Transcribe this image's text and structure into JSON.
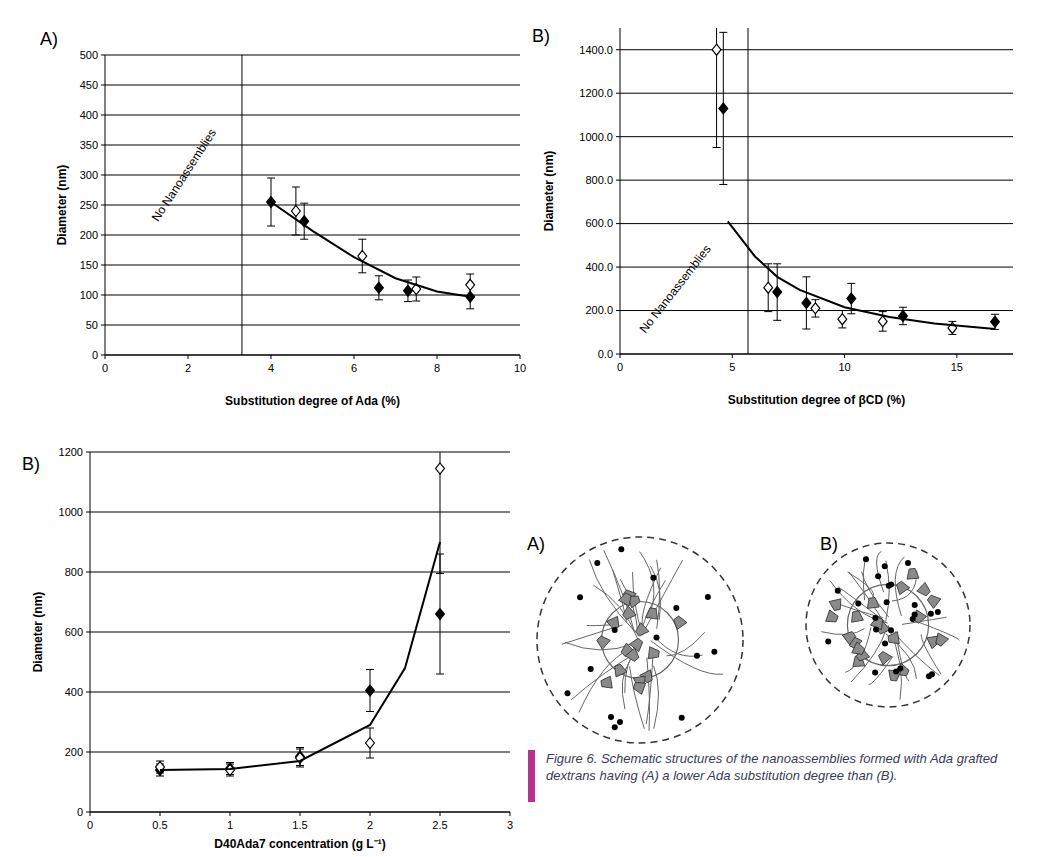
{
  "chart_data": [
    {
      "type": "scatter",
      "panel": "A)",
      "xlabel": "Substitution degree of Ada (%)",
      "ylabel": "Diameter (nm)",
      "xlim": [
        0,
        10
      ],
      "xticks": [
        0,
        2,
        4,
        6,
        8,
        10
      ],
      "ylim": [
        0,
        500
      ],
      "yticks": [
        0,
        50,
        100,
        150,
        200,
        250,
        300,
        350,
        400,
        450,
        500
      ],
      "grid": true,
      "vline": 3.3,
      "annotation": "No Nanoassemblies",
      "series": [
        {
          "marker": "diamond",
          "color": "#000000",
          "x": [
            4.0,
            4.8,
            6.6,
            7.3,
            8.8
          ],
          "values": [
            255,
            223,
            112,
            107,
            97
          ],
          "errors": [
            40,
            30,
            20,
            18,
            20
          ]
        },
        {
          "marker": "diamond-open",
          "color": "#000000",
          "x": [
            4.6,
            6.2,
            7.5,
            8.8
          ],
          "values": [
            240,
            165,
            110,
            117
          ],
          "errors": [
            40,
            28,
            20,
            18
          ]
        },
        {
          "type": "line",
          "color": "#000000",
          "x": [
            4,
            5,
            6,
            7,
            8,
            8.8
          ],
          "values": [
            255,
            207,
            163,
            128,
            106,
            97
          ]
        }
      ]
    },
    {
      "type": "scatter",
      "panel": "B)",
      "xlabel": "Substitution degree of βCD (%)",
      "ylabel": "Diameter (nm)",
      "xlim": [
        0,
        17.5
      ],
      "xticks": [
        0,
        5,
        10,
        15
      ],
      "ylim": [
        0,
        1500
      ],
      "yticks": [
        {
          "value": 0,
          "label": "0.0"
        },
        {
          "value": 200,
          "label": "200.0"
        },
        {
          "value": 400,
          "label": "400.0"
        },
        {
          "value": 600,
          "label": "600.0"
        },
        {
          "value": 800,
          "label": "800.0"
        },
        {
          "value": 1000,
          "label": "1000.0"
        },
        {
          "value": 1200,
          "label": "1200.0"
        },
        {
          "value": 1400,
          "label": "1400.0"
        }
      ],
      "grid": true,
      "vline": 5.7,
      "annotation": "No Nanoassemblies",
      "series": [
        {
          "marker": "diamond",
          "color": "#000000",
          "x": [
            4.6,
            7.0,
            8.3,
            10.3,
            12.6,
            16.7
          ],
          "values": [
            1130,
            285,
            235,
            255,
            175,
            148
          ],
          "errors": [
            350,
            130,
            120,
            70,
            40,
            35
          ]
        },
        {
          "marker": "diamond-open",
          "color": "#000000",
          "x": [
            4.3,
            6.6,
            8.7,
            9.9,
            11.7,
            14.8
          ],
          "values": [
            1400,
            305,
            210,
            160,
            150,
            120
          ],
          "errors": [
            450,
            110,
            40,
            40,
            45,
            30
          ]
        },
        {
          "type": "line",
          "color": "#000000",
          "x": [
            4.8,
            6,
            7,
            8,
            10,
            12,
            14,
            16.7
          ],
          "values": [
            610,
            450,
            355,
            295,
            215,
            170,
            140,
            115
          ]
        }
      ]
    },
    {
      "type": "scatter",
      "panel": "B)",
      "xlabel": "D40Ada7 concentration (g L⁻¹)",
      "ylabel": "Diameter (nm)",
      "xlim": [
        0,
        3
      ],
      "xticks": [
        0,
        0.5,
        1,
        1.5,
        2,
        2.5,
        3
      ],
      "ylim": [
        0,
        1200
      ],
      "yticks": [
        0,
        200,
        400,
        600,
        800,
        1000,
        1200
      ],
      "grid": true,
      "series": [
        {
          "marker": "diamond",
          "color": "#000000",
          "x": [
            0.5,
            1,
            1.5,
            2,
            2.5
          ],
          "values": [
            140,
            145,
            185,
            405,
            660
          ],
          "errors": [
            20,
            20,
            30,
            70,
            200
          ]
        },
        {
          "marker": "diamond-open",
          "color": "#000000",
          "x": [
            0.5,
            1,
            1.5,
            2,
            2.5
          ],
          "values": [
            150,
            140,
            180,
            230,
            1145
          ],
          "errors": [
            20,
            20,
            30,
            50,
            350
          ]
        },
        {
          "type": "line",
          "color": "#000000",
          "x": [
            0.5,
            1,
            1.5,
            2,
            2.25,
            2.5
          ],
          "values": [
            140,
            143,
            170,
            290,
            480,
            900
          ]
        }
      ]
    }
  ],
  "diagram": {
    "labels": [
      "A)",
      "B)"
    ],
    "caption_label": "Figure 6.",
    "caption": "Schematic structures of the nanoassemblies formed with Ada grafted dextrans having (A) a lower Ada substitution degree than (B)."
  }
}
